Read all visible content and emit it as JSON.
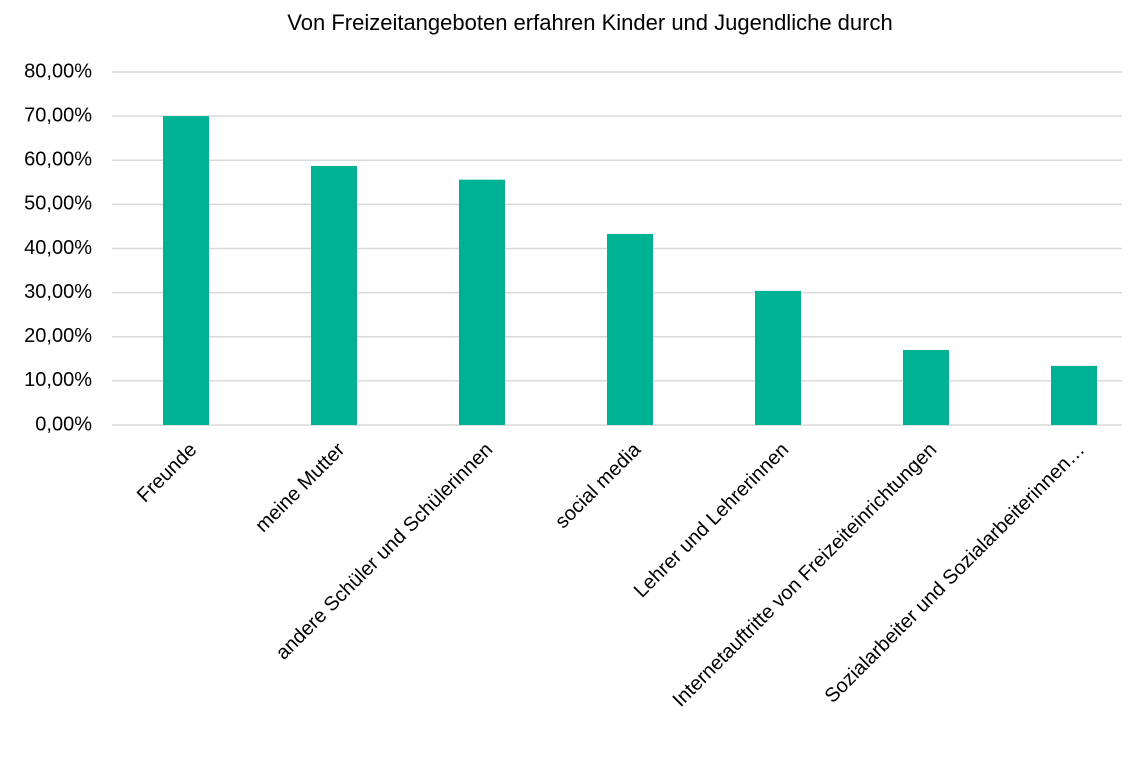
{
  "chart_data": {
    "type": "bar",
    "title": "Von Freizeitangeboten erfahren Kinder und Jugendliche durch",
    "categories": [
      "Freunde",
      "meine Mutter",
      "andere Schüler und Schülerinnen",
      "social media",
      "Lehrer und Lehrerinnen",
      "Internetauftritte von Freizeiteinrichtungen",
      "Sozialarbeiter und Sozialarbeiterinnen…"
    ],
    "values": [
      70,
      58.7,
      55.6,
      43.3,
      30.4,
      17,
      13.4
    ],
    "color": "#00b294",
    "ylim": [
      0,
      80
    ],
    "yticks": [
      {
        "value": 0,
        "label": "0,00%"
      },
      {
        "value": 10,
        "label": "10,00%"
      },
      {
        "value": 20,
        "label": "20,00%"
      },
      {
        "value": 30,
        "label": "30,00%"
      },
      {
        "value": 40,
        "label": "40,00%"
      },
      {
        "value": 50,
        "label": "50,00%"
      },
      {
        "value": 60,
        "label": "60,00%"
      },
      {
        "value": 70,
        "label": "70,00%"
      },
      {
        "value": 80,
        "label": "80,00%"
      }
    ],
    "grid": true
  }
}
